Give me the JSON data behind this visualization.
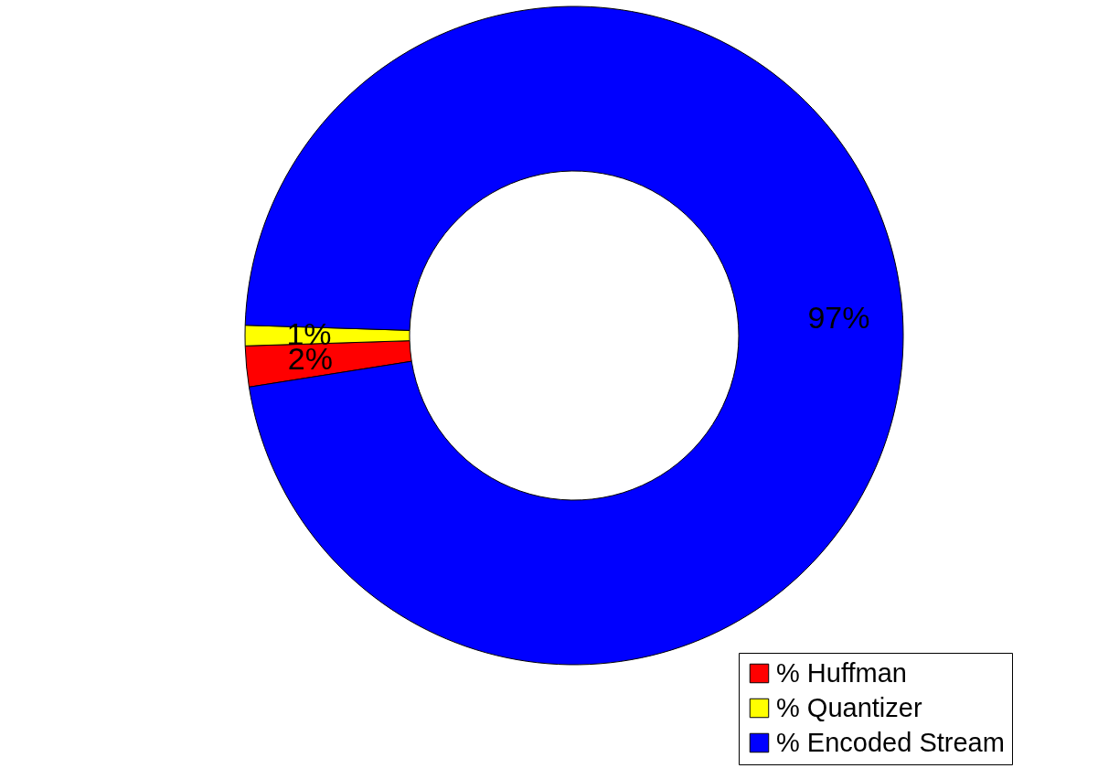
{
  "chart_data": {
    "type": "donut",
    "categories": [
      "% Huffman",
      "% Quantizer",
      "% Encoded Stream"
    ],
    "values": [
      2,
      1,
      97
    ],
    "colors": [
      "#ff0000",
      "#ffff00",
      "#0000ff"
    ],
    "value_labels": [
      "2%",
      "1%",
      "97%"
    ],
    "legend": "bottom right"
  }
}
